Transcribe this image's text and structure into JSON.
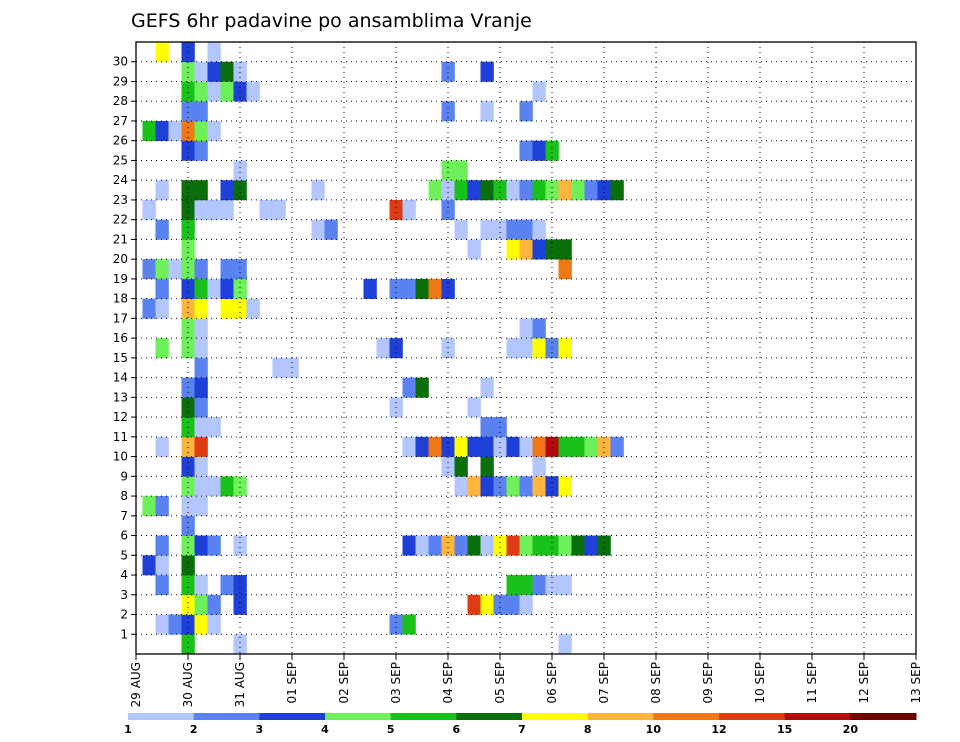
{
  "chart_data": {
    "type": "heatmap",
    "title": "GEFS 6hr padavine po ansamblima Vranje",
    "xlabel": "",
    "ylabel": "",
    "x_tick_labels": [
      "29 AUG",
      "30 AUG",
      "31 AUG",
      "01 SEP",
      "02 SEP",
      "03 SEP",
      "04 SEP",
      "05 SEP",
      "06 SEP",
      "07 SEP",
      "08 SEP",
      "09 SEP",
      "10 SEP",
      "11 SEP",
      "12 SEP",
      "13 SEP"
    ],
    "y_tick_labels": [
      "1",
      "2",
      "3",
      "4",
      "5",
      "6",
      "7",
      "8",
      "9",
      "10",
      "11",
      "12",
      "13",
      "14",
      "15",
      "16",
      "17",
      "18",
      "19",
      "20",
      "21",
      "22",
      "23",
      "24",
      "25",
      "26",
      "27",
      "28",
      "29",
      "30"
    ],
    "time_steps_per_day": 4,
    "n_time_steps": 61,
    "grid": "dotted",
    "colorbar": {
      "labels": [
        "1",
        "2",
        "3",
        "4",
        "5",
        "6",
        "7",
        "8",
        "10",
        "12",
        "15",
        "20"
      ],
      "colors": [
        "#b3c6ff",
        "#5a82f0",
        "#1f3fd9",
        "#6ef05a",
        "#19c219",
        "#0a6e0a",
        "#ffff00",
        "#ffb43c",
        "#f07814",
        "#e03c14",
        "#b40a0a",
        "#6e0000"
      ]
    },
    "cells": {
      "30": [
        [
          1,
          6
        ],
        [
          3,
          2
        ],
        [
          5,
          0
        ]
      ],
      "29": [
        [
          3,
          3
        ],
        [
          4,
          0
        ],
        [
          5,
          2
        ],
        [
          6,
          5
        ],
        [
          7,
          0
        ],
        [
          23,
          1
        ],
        [
          26,
          2
        ]
      ],
      "28": [
        [
          3,
          4
        ],
        [
          4,
          3
        ],
        [
          5,
          0
        ],
        [
          6,
          3
        ],
        [
          7,
          2
        ],
        [
          8,
          0
        ],
        [
          30,
          0
        ]
      ],
      "27": [
        [
          3,
          1
        ],
        [
          4,
          1
        ],
        [
          23,
          1
        ],
        [
          26,
          0
        ],
        [
          29,
          1
        ]
      ],
      "26": [
        [
          0,
          4
        ],
        [
          1,
          2
        ],
        [
          2,
          0
        ],
        [
          3,
          8
        ],
        [
          4,
          3
        ],
        [
          5,
          0
        ]
      ],
      "25": [
        [
          3,
          2
        ],
        [
          4,
          1
        ],
        [
          29,
          1
        ],
        [
          30,
          2
        ],
        [
          31,
          4
        ]
      ],
      "24": [
        [
          7,
          0
        ],
        [
          23,
          3
        ],
        [
          24,
          3
        ]
      ],
      "23": [
        [
          1,
          0
        ],
        [
          3,
          5
        ],
        [
          4,
          5
        ],
        [
          6,
          2
        ],
        [
          7,
          5
        ],
        [
          13,
          0
        ],
        [
          22,
          3
        ],
        [
          23,
          0
        ],
        [
          24,
          4
        ],
        [
          25,
          2
        ],
        [
          26,
          5
        ],
        [
          27,
          4
        ],
        [
          28,
          0
        ],
        [
          29,
          1
        ],
        [
          30,
          4
        ],
        [
          31,
          3
        ],
        [
          32,
          7
        ],
        [
          33,
          3
        ],
        [
          34,
          1
        ],
        [
          35,
          2
        ],
        [
          36,
          5
        ]
      ],
      "22": [
        [
          0,
          0
        ],
        [
          3,
          5
        ],
        [
          4,
          0
        ],
        [
          5,
          0
        ],
        [
          6,
          0
        ],
        [
          9,
          0
        ],
        [
          10,
          0
        ],
        [
          19,
          9
        ],
        [
          20,
          0
        ],
        [
          23,
          1
        ]
      ],
      "21": [
        [
          1,
          1
        ],
        [
          3,
          4
        ],
        [
          13,
          0
        ],
        [
          14,
          1
        ],
        [
          24,
          0
        ],
        [
          26,
          0
        ],
        [
          27,
          0
        ],
        [
          28,
          1
        ],
        [
          29,
          1
        ],
        [
          30,
          0
        ]
      ],
      "20": [
        [
          3,
          3
        ],
        [
          25,
          0
        ],
        [
          28,
          6
        ],
        [
          29,
          7
        ],
        [
          30,
          2
        ],
        [
          31,
          5
        ],
        [
          32,
          5
        ]
      ],
      "19": [
        [
          0,
          1
        ],
        [
          1,
          3
        ],
        [
          2,
          0
        ],
        [
          3,
          3
        ],
        [
          4,
          1
        ],
        [
          6,
          1
        ],
        [
          7,
          1
        ],
        [
          32,
          8
        ]
      ],
      "18": [
        [
          1,
          1
        ],
        [
          3,
          2
        ],
        [
          4,
          4
        ],
        [
          5,
          0
        ],
        [
          6,
          2
        ],
        [
          7,
          3
        ],
        [
          17,
          2
        ],
        [
          19,
          1
        ],
        [
          20,
          1
        ],
        [
          21,
          5
        ],
        [
          22,
          8
        ],
        [
          23,
          2
        ]
      ],
      "17": [
        [
          0,
          1
        ],
        [
          1,
          0
        ],
        [
          3,
          7
        ],
        [
          4,
          6
        ],
        [
          6,
          6
        ],
        [
          7,
          6
        ],
        [
          8,
          0
        ]
      ],
      "16": [
        [
          3,
          3
        ],
        [
          4,
          0
        ],
        [
          29,
          0
        ],
        [
          30,
          1
        ]
      ],
      "15": [
        [
          1,
          3
        ],
        [
          3,
          3
        ],
        [
          4,
          0
        ],
        [
          18,
          0
        ],
        [
          19,
          2
        ],
        [
          23,
          0
        ],
        [
          28,
          0
        ],
        [
          29,
          0
        ],
        [
          30,
          6
        ],
        [
          31,
          1
        ],
        [
          32,
          6
        ]
      ],
      "14": [
        [
          4,
          1
        ],
        [
          10,
          0
        ],
        [
          11,
          0
        ]
      ],
      "13": [
        [
          3,
          1
        ],
        [
          4,
          2
        ],
        [
          20,
          1
        ],
        [
          21,
          5
        ],
        [
          26,
          0
        ]
      ],
      "12": [
        [
          3,
          5
        ],
        [
          4,
          1
        ],
        [
          19,
          0
        ],
        [
          25,
          0
        ]
      ],
      "11": [
        [
          3,
          4
        ],
        [
          4,
          0
        ],
        [
          5,
          0
        ],
        [
          26,
          1
        ],
        [
          27,
          1
        ]
      ],
      "10": [
        [
          1,
          0
        ],
        [
          3,
          7
        ],
        [
          4,
          9
        ],
        [
          20,
          0
        ],
        [
          21,
          2
        ],
        [
          22,
          8
        ],
        [
          23,
          2
        ],
        [
          24,
          6
        ],
        [
          25,
          2
        ],
        [
          26,
          2
        ],
        [
          27,
          0
        ],
        [
          28,
          2
        ],
        [
          29,
          0
        ],
        [
          30,
          8
        ],
        [
          31,
          10
        ],
        [
          32,
          4
        ],
        [
          33,
          4
        ],
        [
          34,
          3
        ],
        [
          35,
          7
        ],
        [
          36,
          1
        ]
      ],
      "9": [
        [
          3,
          2
        ],
        [
          4,
          0
        ],
        [
          23,
          0
        ],
        [
          24,
          5
        ],
        [
          26,
          5
        ],
        [
          30,
          0
        ]
      ],
      "8": [
        [
          3,
          3
        ],
        [
          4,
          0
        ],
        [
          5,
          0
        ],
        [
          6,
          4
        ],
        [
          7,
          3
        ],
        [
          24,
          0
        ],
        [
          25,
          7
        ],
        [
          26,
          2
        ],
        [
          27,
          1
        ],
        [
          28,
          3
        ],
        [
          29,
          1
        ],
        [
          30,
          7
        ],
        [
          31,
          2
        ],
        [
          32,
          6
        ]
      ],
      "7": [
        [
          0,
          3
        ],
        [
          1,
          1
        ],
        [
          3,
          0
        ],
        [
          4,
          0
        ]
      ],
      "6": [
        [
          3,
          1
        ]
      ],
      "5": [
        [
          1,
          1
        ],
        [
          3,
          3
        ],
        [
          4,
          2
        ],
        [
          5,
          1
        ],
        [
          7,
          0
        ],
        [
          20,
          2
        ],
        [
          21,
          0
        ],
        [
          22,
          1
        ],
        [
          23,
          7
        ],
        [
          24,
          1
        ],
        [
          25,
          5
        ],
        [
          26,
          0
        ],
        [
          27,
          6
        ],
        [
          28,
          9
        ],
        [
          29,
          3
        ],
        [
          30,
          4
        ],
        [
          31,
          4
        ],
        [
          32,
          3
        ],
        [
          33,
          5
        ],
        [
          34,
          2
        ],
        [
          35,
          5
        ]
      ],
      "4": [
        [
          0,
          2
        ],
        [
          1,
          0
        ],
        [
          3,
          5
        ]
      ],
      "3": [
        [
          1,
          1
        ],
        [
          3,
          4
        ],
        [
          4,
          0
        ],
        [
          6,
          1
        ],
        [
          7,
          2
        ],
        [
          28,
          4
        ],
        [
          29,
          4
        ],
        [
          30,
          1
        ],
        [
          31,
          0
        ],
        [
          32,
          0
        ]
      ],
      "2": [
        [
          3,
          6
        ],
        [
          4,
          3
        ],
        [
          5,
          1
        ],
        [
          7,
          2
        ],
        [
          25,
          9
        ],
        [
          26,
          6
        ],
        [
          27,
          1
        ],
        [
          28,
          1
        ],
        [
          29,
          0
        ]
      ],
      "1": [
        [
          1,
          0
        ],
        [
          2,
          1
        ],
        [
          3,
          2
        ],
        [
          4,
          6
        ],
        [
          5,
          0
        ],
        [
          19,
          1
        ],
        [
          20,
          4
        ]
      ],
      "0": [
        [
          3,
          4
        ],
        [
          7,
          0
        ],
        [
          32,
          0
        ]
      ]
    }
  }
}
